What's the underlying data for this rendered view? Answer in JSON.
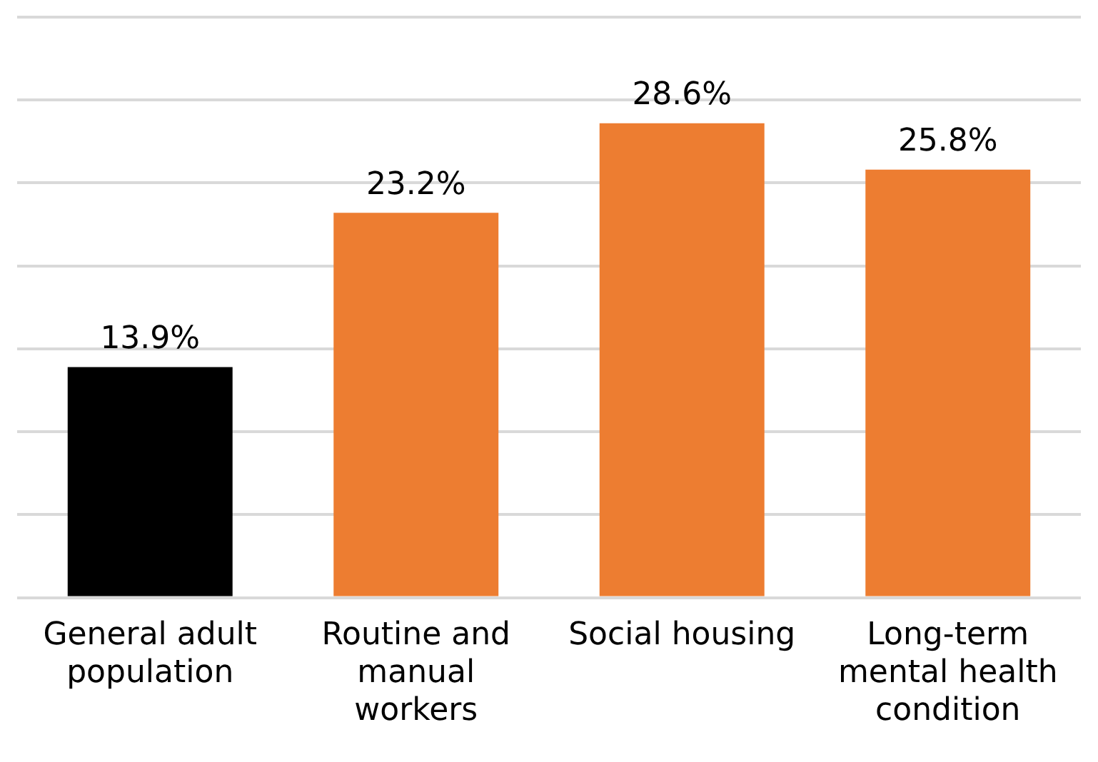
{
  "chart_data": {
    "type": "bar",
    "categories": [
      "General adult population",
      "Routine and manual workers",
      "Social housing",
      "Long-term mental health condition"
    ],
    "values": [
      13.9,
      23.2,
      28.6,
      25.8
    ],
    "colors": [
      "#000000",
      "#ed7d31",
      "#ed7d31",
      "#ed7d31"
    ],
    "value_labels": [
      "13.9%",
      "23.2%",
      "28.6%",
      "25.8%"
    ],
    "ylim": [
      0,
      35
    ],
    "yticks": [
      {
        "value": 0,
        "label": null
      },
      {
        "value": 5,
        "label": null
      },
      {
        "value": 10,
        "label": null
      },
      {
        "value": 15,
        "label": null
      },
      {
        "value": 20,
        "label": null
      },
      {
        "value": 25,
        "label": null
      },
      {
        "value": 30,
        "label": null
      },
      {
        "value": 35,
        "label": null
      }
    ],
    "grid": "y",
    "legend": false,
    "tick_labels": "x"
  }
}
